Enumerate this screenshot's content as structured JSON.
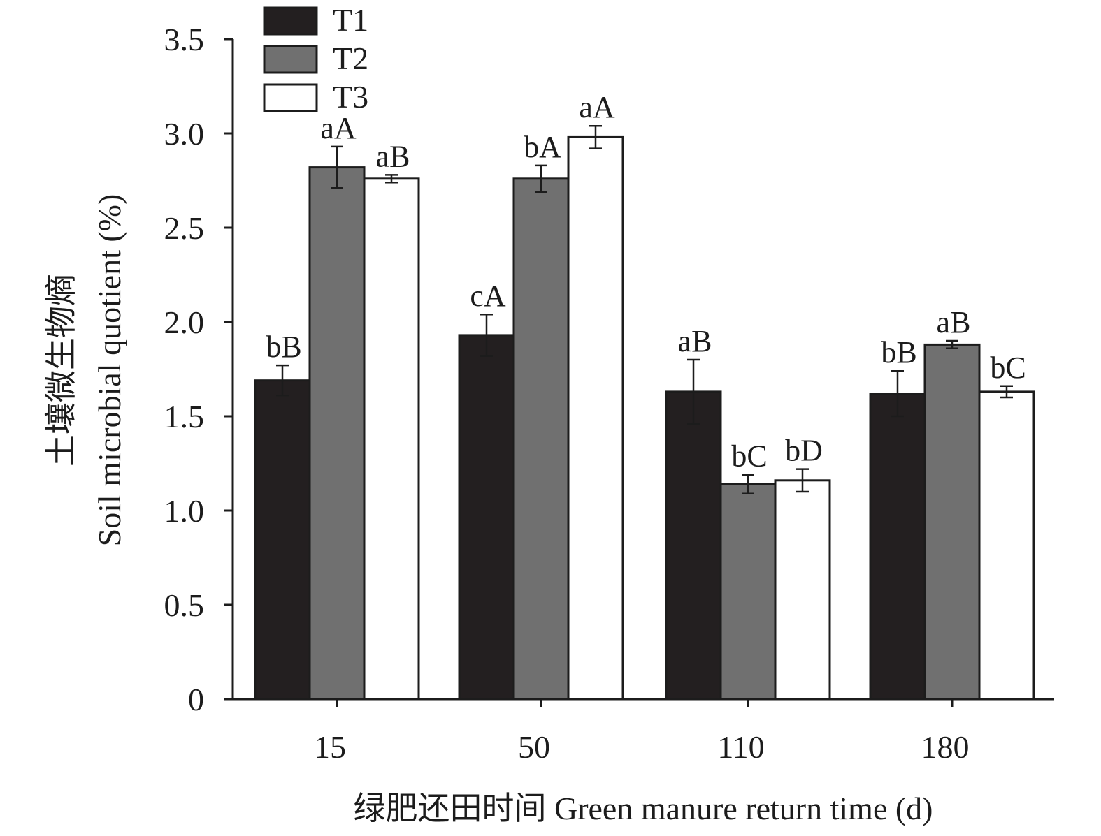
{
  "chart_data": {
    "type": "bar",
    "xlabel": "绿肥还田时间 Green manure return time (d)",
    "ylabel_line1": "土壤微生物熵",
    "ylabel_line2": "Soil microbial quotient (%)",
    "categories": [
      "15",
      "50",
      "110",
      "180"
    ],
    "ylim": [
      0,
      3.5
    ],
    "yticks": [
      0,
      0.5,
      1.0,
      1.5,
      2.0,
      2.5,
      3.0,
      3.5
    ],
    "ytick_labels": [
      "0",
      "0.5",
      "1.0",
      "1.5",
      "2.0",
      "2.5",
      "3.0",
      "3.5"
    ],
    "grid": false,
    "legend_position": "top-left",
    "series": [
      {
        "name": "T1",
        "color": "#231f20",
        "values": [
          1.69,
          1.93,
          1.63,
          1.62
        ],
        "errors": [
          0.08,
          0.11,
          0.17,
          0.12
        ],
        "labels": [
          "bB",
          "cA",
          "aB",
          "bB"
        ]
      },
      {
        "name": "T2",
        "color": "#707070",
        "values": [
          2.82,
          2.76,
          1.14,
          1.88
        ],
        "errors": [
          0.11,
          0.07,
          0.05,
          0.02
        ],
        "labels": [
          "aA",
          "bA",
          "bC",
          "aB"
        ]
      },
      {
        "name": "T3",
        "color": "#ffffff",
        "values": [
          2.76,
          2.98,
          1.16,
          1.63
        ],
        "errors": [
          0.02,
          0.06,
          0.06,
          0.03
        ],
        "labels": [
          "aB",
          "aA",
          "bD",
          "bC"
        ]
      }
    ]
  }
}
